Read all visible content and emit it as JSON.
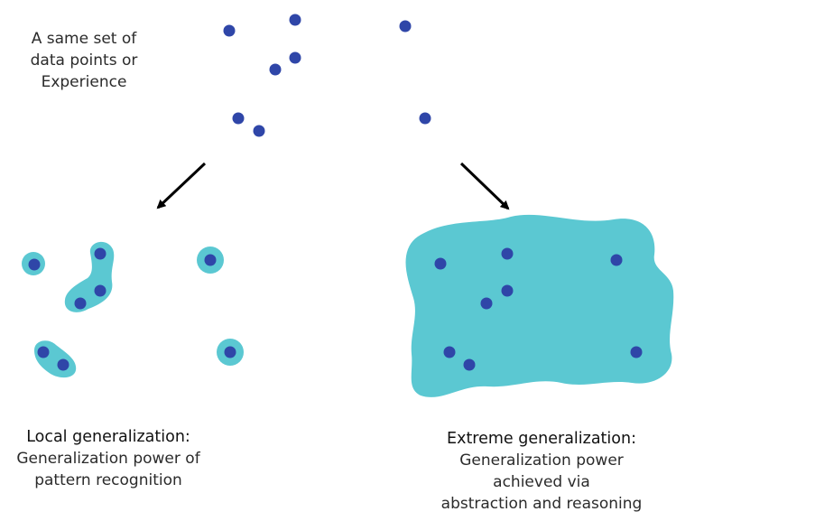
{
  "intro_text": [
    "A same set of",
    "data points or",
    "Experience"
  ],
  "local": {
    "heading": "Local generalization:",
    "lines": [
      "Generalization power of",
      "pattern recognition"
    ]
  },
  "extreme": {
    "heading": "Extreme generalization:",
    "lines": [
      "Generalization power",
      "achieved via",
      "abstraction and reasoning"
    ]
  },
  "colors": {
    "point": "#2f46a8",
    "region": "#5bc8d2",
    "arrow": "#000000"
  }
}
